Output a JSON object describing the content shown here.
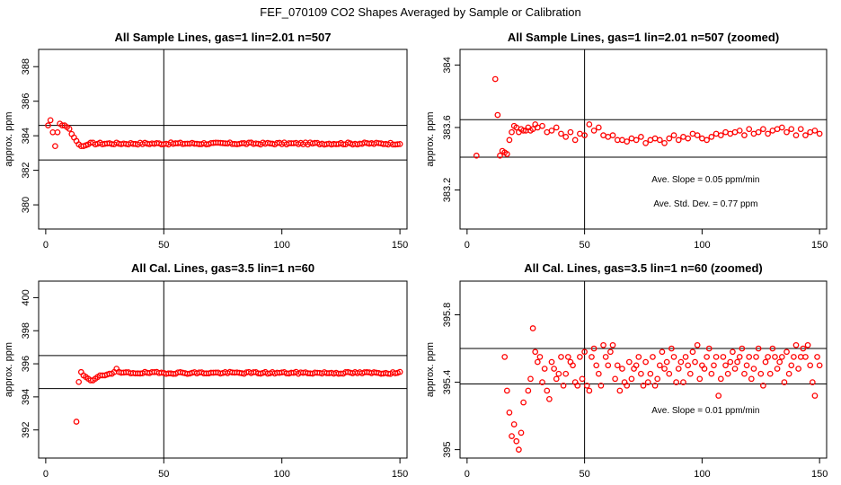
{
  "figure_title": "FEF_070109  CO2 Shapes Averaged by Sample or Calibration",
  "colors": {
    "points": "#ff0000",
    "axes": "#000000",
    "background": "#ffffff"
  },
  "chart_data": [
    {
      "type": "scatter",
      "title": "All Sample Lines, gas=1 lin=2.01 n=507",
      "xlabel": "",
      "ylabel": "approx. ppm",
      "xlim": [
        -3,
        153
      ],
      "ylim": [
        378.6,
        389
      ],
      "xticks": [
        0,
        50,
        100,
        150
      ],
      "yticks": [
        380,
        382,
        384,
        386,
        388
      ],
      "hlines": [
        384.6,
        382.6
      ],
      "vline": 50,
      "base_value": 383.55,
      "early_x": [
        1,
        2,
        3,
        4,
        5,
        6,
        7,
        8,
        9,
        10,
        11,
        12,
        13,
        14,
        15,
        16,
        17,
        18
      ],
      "early_y": [
        384.6,
        384.9,
        384.2,
        383.4,
        384.2,
        384.7,
        384.6,
        384.6,
        384.5,
        384.4,
        384.1,
        383.9,
        383.7,
        383.5,
        383.4,
        383.4,
        383.45,
        383.5
      ],
      "n_points": 150,
      "annotations": []
    },
    {
      "type": "scatter",
      "title": "All Sample Lines, gas=1 lin=2.01 n=507 (zoomed)",
      "xlabel": "",
      "ylabel": "approx. ppm",
      "xlim": [
        -3,
        153
      ],
      "ylim": [
        382.95,
        384.1
      ],
      "xticks": [
        0,
        50,
        100,
        150
      ],
      "yticks": [
        383.2,
        383.6,
        384.0
      ],
      "hlines": [
        383.65,
        383.41
      ],
      "vline": 50,
      "x": [
        4,
        12,
        13,
        14,
        15,
        16,
        17,
        18,
        19,
        20,
        21,
        22,
        23,
        24,
        25,
        26,
        27,
        28,
        29,
        30,
        32,
        34,
        36,
        38,
        40,
        42,
        44,
        46,
        48,
        50,
        52,
        54,
        56,
        58,
        60,
        62,
        64,
        66,
        68,
        70,
        72,
        74,
        76,
        78,
        80,
        82,
        84,
        86,
        88,
        90,
        92,
        94,
        96,
        98,
        100,
        102,
        104,
        106,
        108,
        110,
        112,
        114,
        116,
        118,
        120,
        122,
        124,
        126,
        128,
        130,
        132,
        134,
        136,
        138,
        140,
        142,
        144,
        146,
        148,
        150
      ],
      "y": [
        383.42,
        383.91,
        383.68,
        383.42,
        383.45,
        383.44,
        383.43,
        383.52,
        383.57,
        383.61,
        383.6,
        383.57,
        383.59,
        383.58,
        383.58,
        383.6,
        383.58,
        383.59,
        383.62,
        383.6,
        383.61,
        383.57,
        383.58,
        383.6,
        383.56,
        383.54,
        383.57,
        383.52,
        383.56,
        383.55,
        383.62,
        383.58,
        383.6,
        383.55,
        383.54,
        383.55,
        383.52,
        383.52,
        383.51,
        383.53,
        383.52,
        383.54,
        383.5,
        383.52,
        383.53,
        383.52,
        383.5,
        383.53,
        383.55,
        383.52,
        383.54,
        383.53,
        383.56,
        383.55,
        383.53,
        383.52,
        383.54,
        383.56,
        383.55,
        383.57,
        383.56,
        383.57,
        383.58,
        383.55,
        383.59,
        383.56,
        383.57,
        383.59,
        383.56,
        383.58,
        383.59,
        383.6,
        383.57,
        383.59,
        383.55,
        383.59,
        383.55,
        383.57,
        383.58,
        383.56
      ],
      "annotations": [
        "Ave. Slope =  0.05  ppm/min",
        "Ave. Std. Dev. =  0.77  ppm"
      ]
    },
    {
      "type": "scatter",
      "title": "All Cal. Lines, gas=3.5 lin=1 n=60",
      "xlabel": "",
      "ylabel": "approx. ppm",
      "xlim": [
        -3,
        153
      ],
      "ylim": [
        390.3,
        401
      ],
      "xticks": [
        0,
        50,
        100,
        150
      ],
      "yticks": [
        392,
        394,
        396,
        398,
        400
      ],
      "hlines": [
        396.5,
        394.5
      ],
      "vline": 50,
      "base_value": 395.45,
      "early_x": [
        13,
        14,
        15,
        16,
        17,
        18,
        19,
        20,
        21,
        22,
        23,
        24,
        25,
        26,
        27,
        28,
        29,
        30
      ],
      "early_y": [
        392.5,
        394.9,
        395.5,
        395.3,
        395.2,
        395.1,
        395.0,
        395.0,
        395.1,
        395.2,
        395.3,
        395.3,
        395.3,
        395.35,
        395.4,
        395.4,
        395.5,
        395.7
      ],
      "n_points": 150,
      "annotations": []
    },
    {
      "type": "scatter",
      "title": "All Cal. Lines, gas=3.5 lin=1 n=60 (zoomed)",
      "xlabel": "",
      "ylabel": "approx. ppm",
      "xlim": [
        -3,
        153
      ],
      "ylim": [
        394.95,
        396.0
      ],
      "xticks": [
        0,
        50,
        100,
        150
      ],
      "yticks": [
        395.0,
        395.4,
        395.8
      ],
      "hlines": [
        395.6,
        395.39
      ],
      "vline": 50,
      "x": [
        16,
        17,
        18,
        19,
        20,
        21,
        22,
        23,
        24,
        26,
        27,
        28,
        29,
        30,
        31,
        32,
        33,
        34,
        35,
        36,
        37,
        38,
        39,
        40,
        41,
        42,
        43,
        44,
        45,
        46,
        47,
        48,
        49,
        50,
        51,
        52,
        53,
        54,
        55,
        56,
        57,
        58,
        59,
        60,
        61,
        62,
        63,
        64,
        65,
        66,
        67,
        68,
        69,
        70,
        71,
        72,
        73,
        74,
        75,
        76,
        77,
        78,
        79,
        80,
        81,
        82,
        83,
        84,
        85,
        86,
        87,
        88,
        89,
        90,
        91,
        92,
        93,
        94,
        95,
        96,
        97,
        98,
        99,
        100,
        101,
        102,
        103,
        104,
        105,
        106,
        107,
        108,
        109,
        110,
        111,
        112,
        113,
        114,
        115,
        116,
        117,
        118,
        119,
        120,
        121,
        122,
        123,
        124,
        125,
        126,
        127,
        128,
        129,
        130,
        131,
        132,
        133,
        134,
        135,
        136,
        137,
        138,
        139,
        140,
        141,
        142,
        143,
        144,
        145,
        146,
        147,
        148,
        149,
        150
      ],
      "y": [
        395.55,
        395.35,
        395.22,
        395.08,
        395.15,
        395.05,
        395.0,
        395.1,
        395.28,
        395.35,
        395.42,
        395.72,
        395.58,
        395.52,
        395.55,
        395.4,
        395.48,
        395.35,
        395.3,
        395.52,
        395.48,
        395.42,
        395.45,
        395.55,
        395.38,
        395.45,
        395.55,
        395.52,
        395.5,
        395.4,
        395.38,
        395.55,
        395.42,
        395.58,
        395.38,
        395.35,
        395.55,
        395.6,
        395.5,
        395.45,
        395.38,
        395.62,
        395.55,
        395.5,
        395.58,
        395.62,
        395.42,
        395.5,
        395.35,
        395.48,
        395.4,
        395.38,
        395.52,
        395.42,
        395.48,
        395.5,
        395.55,
        395.45,
        395.38,
        395.52,
        395.4,
        395.45,
        395.55,
        395.38,
        395.42,
        395.5,
        395.58,
        395.48,
        395.52,
        395.45,
        395.6,
        395.55,
        395.4,
        395.48,
        395.52,
        395.4,
        395.55,
        395.5,
        395.45,
        395.58,
        395.52,
        395.62,
        395.42,
        395.5,
        395.48,
        395.55,
        395.6,
        395.45,
        395.5,
        395.55,
        395.32,
        395.42,
        395.55,
        395.5,
        395.45,
        395.52,
        395.58,
        395.48,
        395.52,
        395.55,
        395.6,
        395.45,
        395.5,
        395.55,
        395.42,
        395.48,
        395.55,
        395.6,
        395.45,
        395.38,
        395.52,
        395.55,
        395.45,
        395.6,
        395.55,
        395.48,
        395.52,
        395.55,
        395.4,
        395.58,
        395.45,
        395.5,
        395.55,
        395.62,
        395.48,
        395.55,
        395.6,
        395.55,
        395.62,
        395.5,
        395.4,
        395.32,
        395.55,
        395.5
      ],
      "annotations": [
        "Ave. Slope =  0.01  ppm/min"
      ]
    }
  ]
}
